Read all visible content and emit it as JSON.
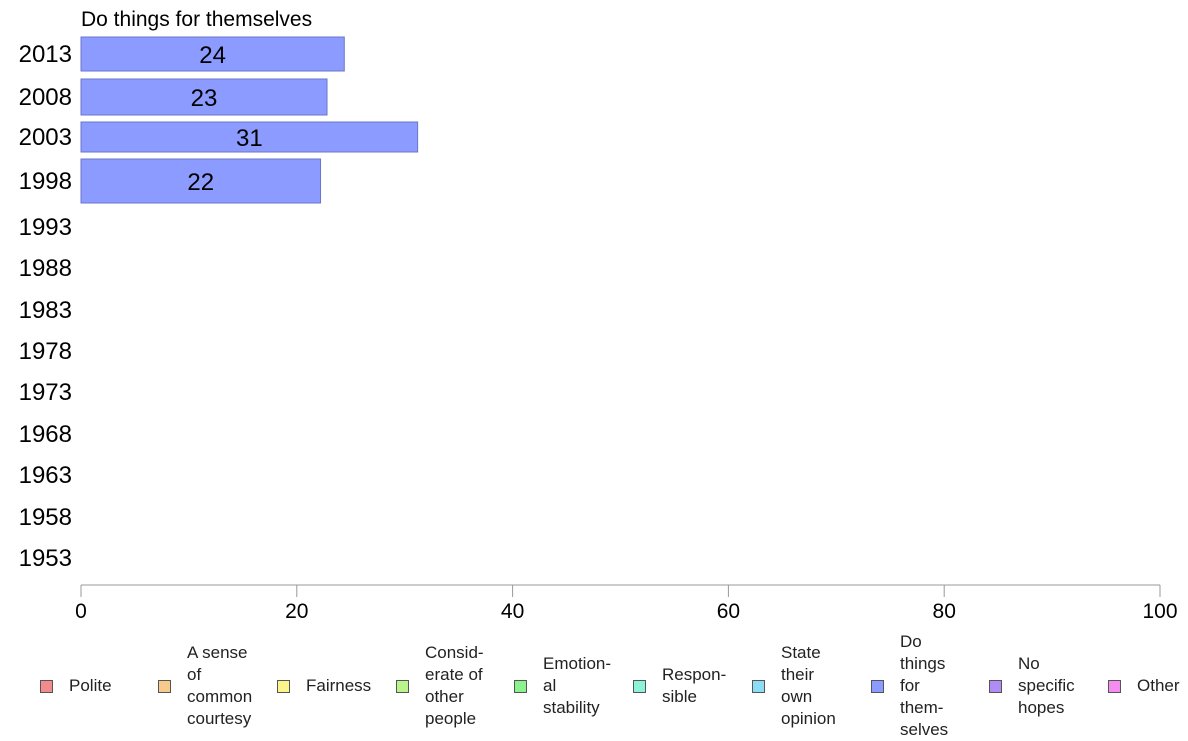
{
  "chart_data": {
    "type": "bar",
    "orientation": "horizontal",
    "title": "Do things for themselves",
    "categories": [
      "2013",
      "2008",
      "2003",
      "1998",
      "1993",
      "1988",
      "1983",
      "1978",
      "1973",
      "1968",
      "1963",
      "1958",
      "1953"
    ],
    "values": [
      24.4,
      22.8,
      31.2,
      22.2,
      null,
      null,
      null,
      null,
      null,
      null,
      null,
      null,
      null
    ],
    "data_labels": [
      "24",
      "23",
      "31",
      "22",
      "",
      "",
      "",
      "",
      "",
      "",
      "",
      "",
      ""
    ],
    "bar_color": "#8c9bff",
    "xlim": [
      0,
      100
    ],
    "x_ticks": [
      "0",
      "20",
      "40",
      "60",
      "80",
      "100"
    ],
    "grid": false,
    "legend_position": "bottom"
  },
  "legend": [
    {
      "label": "Polite",
      "color": "#f28b8b"
    },
    {
      "label": "A sense\nof\ncommon\ncourtesy",
      "color": "#f7c98a"
    },
    {
      "label": "Fairness",
      "color": "#fbf58c"
    },
    {
      "label": "Consid-\nerate of\nother\npeople",
      "color": "#b9f58a"
    },
    {
      "label": "Emotion-\nal\nstability",
      "color": "#8cf28c"
    },
    {
      "label": "Respon-\nsible",
      "color": "#8cf2d9"
    },
    {
      "label": "State\ntheir\nown\nopinion",
      "color": "#8cdcf5"
    },
    {
      "label": "Do\nthings\nfor\nthem-\nselves",
      "color": "#8c9bff"
    },
    {
      "label": "No\nspecific\nhopes",
      "color": "#b08cf5"
    },
    {
      "label": "Other",
      "color": "#f58cf0"
    }
  ]
}
